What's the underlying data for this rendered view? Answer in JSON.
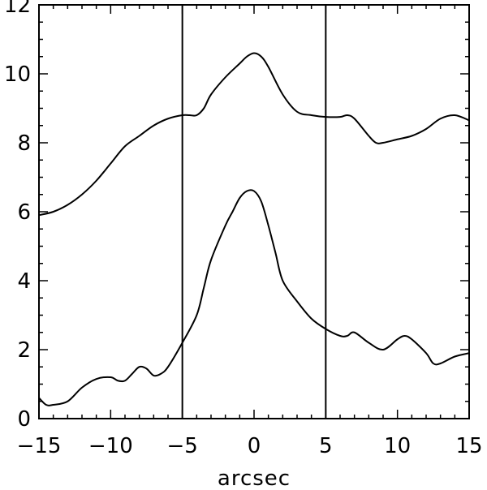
{
  "chart_data": {
    "type": "line",
    "title": "",
    "xlabel": "arcsec",
    "ylabel": "",
    "xlim": [
      -15,
      15
    ],
    "ylim": [
      0,
      12
    ],
    "grid": false,
    "x_ticks": [
      -15,
      -10,
      -5,
      0,
      5,
      10,
      15
    ],
    "x_tick_labels": [
      "−15",
      "−10",
      "−5",
      "0",
      "5",
      "10",
      "15"
    ],
    "y_ticks": [
      0,
      2,
      4,
      6,
      8,
      10,
      12
    ],
    "y_tick_labels": [
      "0",
      "2",
      "4",
      "6",
      "8",
      "10",
      "12"
    ],
    "x_minor_step": 1,
    "y_minor_step": 0.5,
    "vertical_lines": [
      -5,
      5
    ],
    "series": [
      {
        "x": [
          -15,
          -14,
          -13,
          -12,
          -11,
          -10,
          -9,
          -8,
          -7,
          -6,
          -5,
          -4.5,
          -4,
          -3.5,
          -3,
          -2,
          -1,
          -0.5,
          0,
          0.5,
          1,
          2,
          3,
          4,
          5,
          6,
          6.5,
          7,
          8,
          8.5,
          9,
          10,
          11,
          12,
          13,
          14,
          15
        ],
        "y": [
          5.9,
          6.0,
          6.2,
          6.5,
          6.9,
          7.4,
          7.9,
          8.2,
          8.5,
          8.7,
          8.8,
          8.8,
          8.8,
          9.0,
          9.4,
          9.9,
          10.3,
          10.5,
          10.6,
          10.5,
          10.2,
          9.4,
          8.9,
          8.8,
          8.75,
          8.75,
          8.8,
          8.7,
          8.2,
          8.0,
          8.0,
          8.1,
          8.2,
          8.4,
          8.7,
          8.8,
          8.65
        ]
      },
      {
        "x": [
          -15,
          -14.5,
          -14,
          -13,
          -12,
          -11,
          -10,
          -9.5,
          -9,
          -8.5,
          -8,
          -7.5,
          -7,
          -6.5,
          -6,
          -5,
          -4,
          -3.5,
          -3,
          -2,
          -1.5,
          -1,
          -0.5,
          0,
          0.5,
          1,
          1.5,
          2,
          3,
          4,
          5,
          6,
          6.5,
          7,
          8,
          9,
          10,
          10.5,
          11,
          12,
          12.5,
          13,
          14,
          15
        ],
        "y": [
          0.6,
          0.4,
          0.4,
          0.5,
          0.9,
          1.15,
          1.2,
          1.1,
          1.1,
          1.3,
          1.5,
          1.45,
          1.25,
          1.3,
          1.5,
          2.2,
          3.0,
          3.8,
          4.6,
          5.6,
          6.0,
          6.4,
          6.6,
          6.6,
          6.3,
          5.6,
          4.8,
          4.0,
          3.4,
          2.9,
          2.6,
          2.4,
          2.4,
          2.5,
          2.2,
          2.0,
          2.3,
          2.4,
          2.3,
          1.9,
          1.6,
          1.6,
          1.8,
          1.9
        ]
      }
    ]
  }
}
